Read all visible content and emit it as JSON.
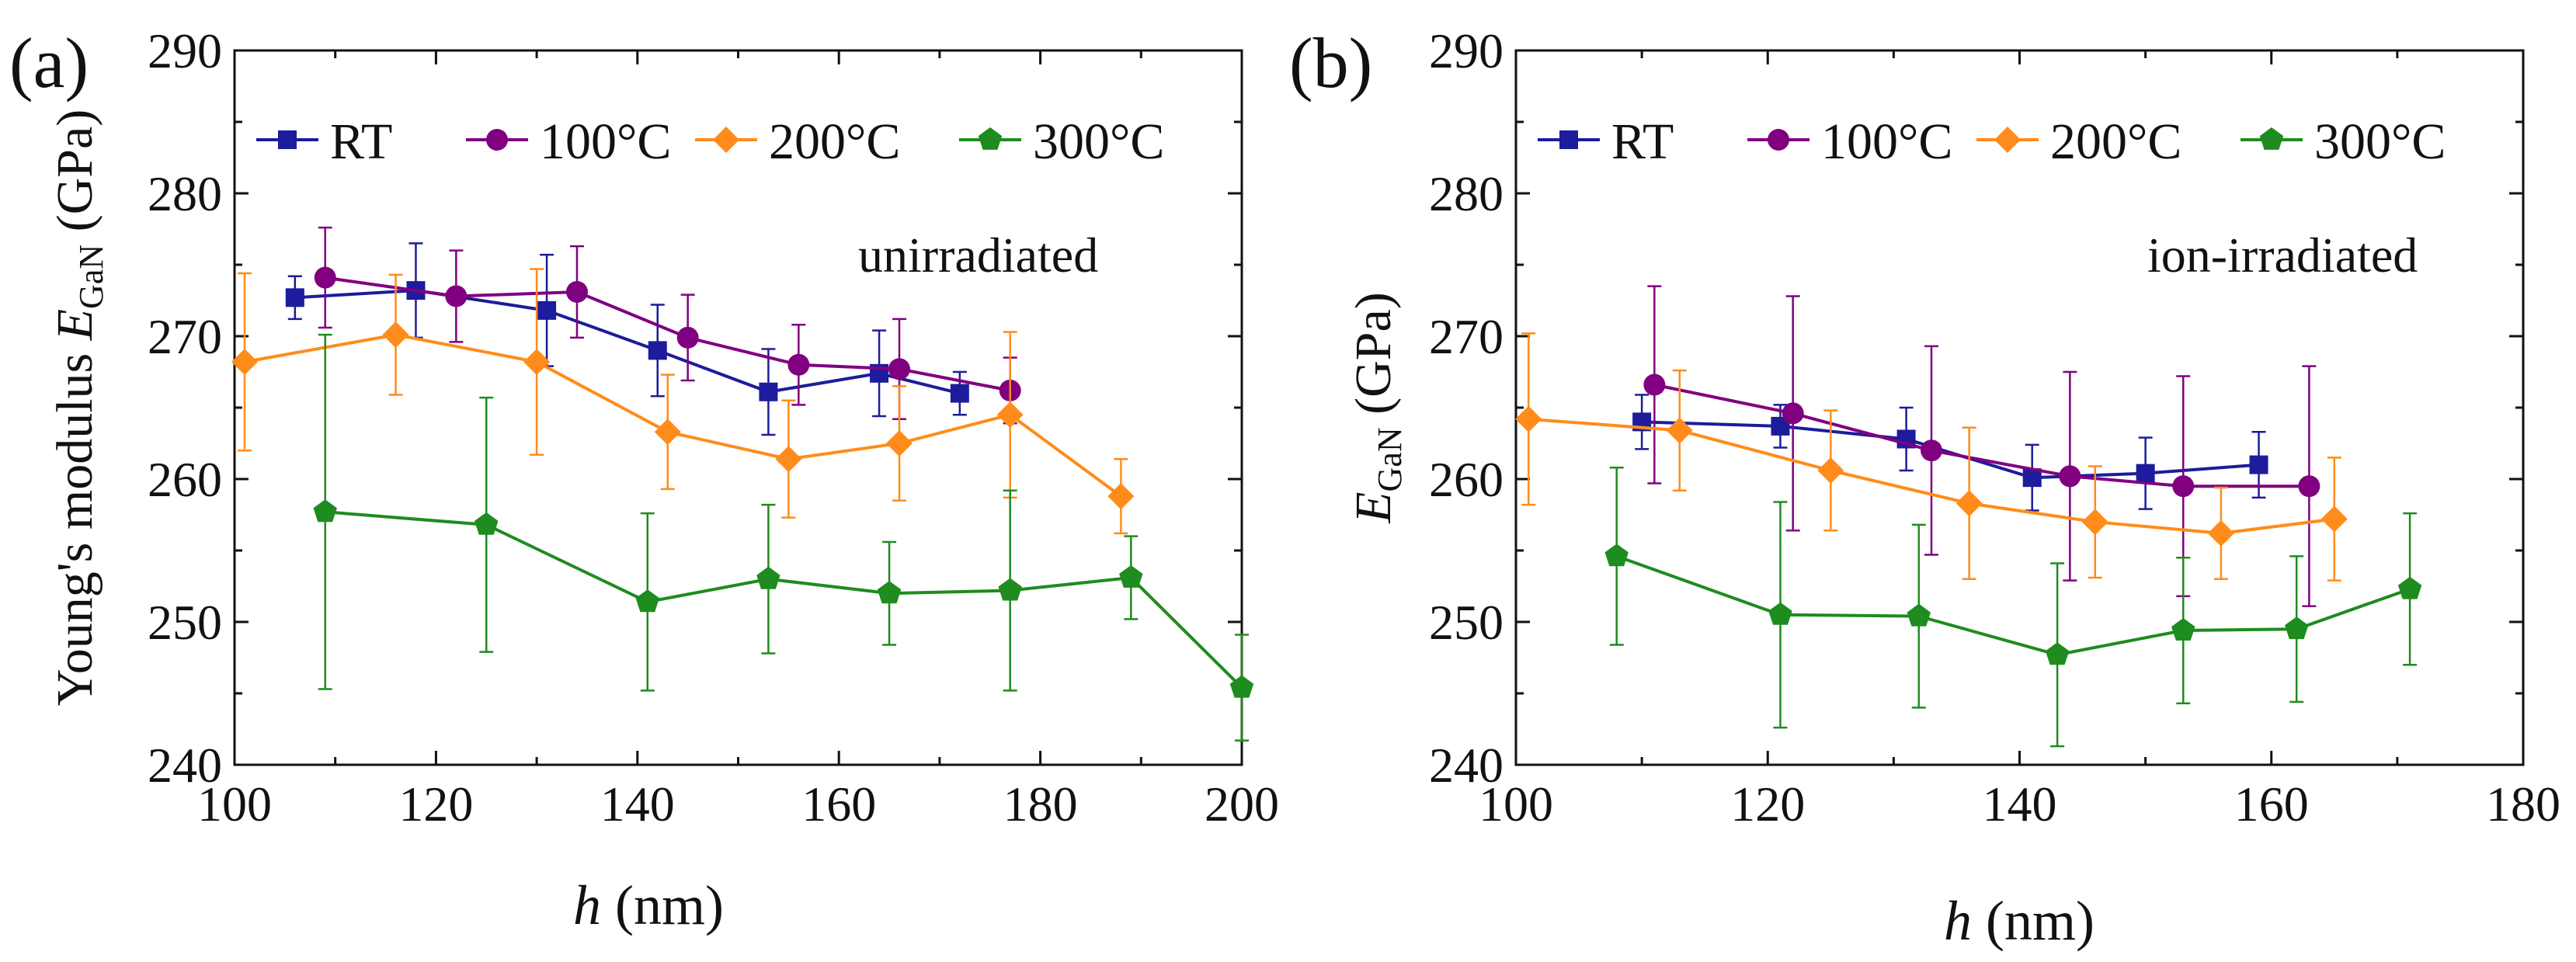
{
  "chart_data": [
    {
      "type": "line",
      "panel_label": "(a)",
      "annotation": "unirradiated",
      "title": "",
      "xlabel_italic": "h",
      "xlabel_rest": " (nm)",
      "ylabel_prefix": "Young's modulus ",
      "ylabel_italic": "E",
      "ylabel_sub": "GaN",
      "ylabel_suffix": " (GPa)",
      "xlim": [
        100,
        200
      ],
      "ylim": [
        240,
        290
      ],
      "xticks": [
        "100",
        "120",
        "140",
        "160",
        "180",
        "200"
      ],
      "yticks": [
        "240",
        "250",
        "260",
        "270",
        "280",
        "290"
      ],
      "legend_position": "top",
      "series": [
        {
          "name": "RT",
          "color": "#1c1c9c",
          "marker": "square",
          "x": [
            106,
            118,
            131,
            142,
            153,
            164,
            172
          ],
          "y": [
            272.7,
            273.2,
            271.8,
            269.0,
            266.1,
            267.4,
            266.0
          ],
          "err": [
            1.5,
            3.3,
            3.9,
            3.2,
            3.0,
            3.0,
            1.5
          ]
        },
        {
          "name": "100°C",
          "color": "#800080",
          "marker": "circle",
          "x": [
            109,
            122,
            134,
            145,
            156,
            166,
            177
          ],
          "y": [
            274.1,
            272.8,
            273.1,
            269.9,
            268.0,
            267.7,
            266.2
          ],
          "err": [
            3.5,
            3.2,
            3.2,
            3.0,
            2.8,
            3.5,
            2.3
          ]
        },
        {
          "name": "200°C",
          "color": "#ff8c1a",
          "marker": "diamond",
          "x": [
            101,
            116,
            130,
            143,
            155,
            166,
            177,
            188
          ],
          "y": [
            268.2,
            270.1,
            268.2,
            263.3,
            261.4,
            262.5,
            264.5,
            258.8
          ],
          "err": [
            6.2,
            4.2,
            6.5,
            4.0,
            4.1,
            4.0,
            5.8,
            2.6
          ]
        },
        {
          "name": "300°C",
          "color": "#1e8c1e",
          "marker": "pentagon",
          "x": [
            109,
            125,
            141,
            153,
            165,
            177,
            189,
            200
          ],
          "y": [
            257.7,
            256.8,
            251.4,
            253.0,
            252.0,
            252.2,
            253.1,
            245.4
          ],
          "err": [
            12.4,
            8.9,
            6.2,
            5.2,
            3.6,
            7.0,
            2.9,
            3.7
          ]
        }
      ]
    },
    {
      "type": "line",
      "panel_label": "(b)",
      "annotation": "ion-irradiated",
      "title": "",
      "xlabel_italic": "h",
      "xlabel_rest": " (nm)",
      "ylabel_prefix": "",
      "ylabel_italic": "E",
      "ylabel_sub": "GaN",
      "ylabel_suffix": " (GPa)",
      "xlim": [
        100,
        180
      ],
      "ylim": [
        240,
        290
      ],
      "xticks": [
        "100",
        "120",
        "140",
        "160",
        "180"
      ],
      "yticks": [
        "240",
        "250",
        "260",
        "270",
        "280",
        "290"
      ],
      "legend_position": "top",
      "series": [
        {
          "name": "RT",
          "color": "#1c1c9c",
          "marker": "square",
          "x": [
            110,
            121,
            131,
            141,
            150,
            159
          ],
          "y": [
            264.0,
            263.7,
            262.8,
            260.1,
            260.4,
            261.0
          ],
          "err": [
            1.9,
            1.5,
            2.2,
            2.3,
            2.5,
            2.3
          ]
        },
        {
          "name": "100°C",
          "color": "#800080",
          "marker": "circle",
          "x": [
            111,
            122,
            133,
            144,
            153,
            163
          ],
          "y": [
            266.6,
            264.6,
            262.0,
            260.2,
            259.5,
            259.5
          ],
          "err": [
            6.9,
            8.2,
            7.3,
            7.3,
            7.7,
            8.4
          ]
        },
        {
          "name": "200°C",
          "color": "#ff8c1a",
          "marker": "diamond",
          "x": [
            101,
            113,
            125,
            136,
            146,
            156,
            165
          ],
          "y": [
            264.2,
            263.4,
            260.6,
            258.3,
            257.0,
            256.2,
            257.2
          ],
          "err": [
            6.0,
            4.2,
            4.2,
            5.3,
            3.9,
            3.2,
            4.3
          ]
        },
        {
          "name": "300°C",
          "color": "#1e8c1e",
          "marker": "pentagon",
          "x": [
            108,
            121,
            132,
            143,
            153,
            162,
            171
          ],
          "y": [
            254.6,
            250.5,
            250.4,
            247.7,
            249.4,
            249.5,
            252.3
          ],
          "err": [
            6.2,
            7.9,
            6.4,
            6.4,
            5.1,
            5.1,
            5.3
          ]
        }
      ]
    }
  ]
}
